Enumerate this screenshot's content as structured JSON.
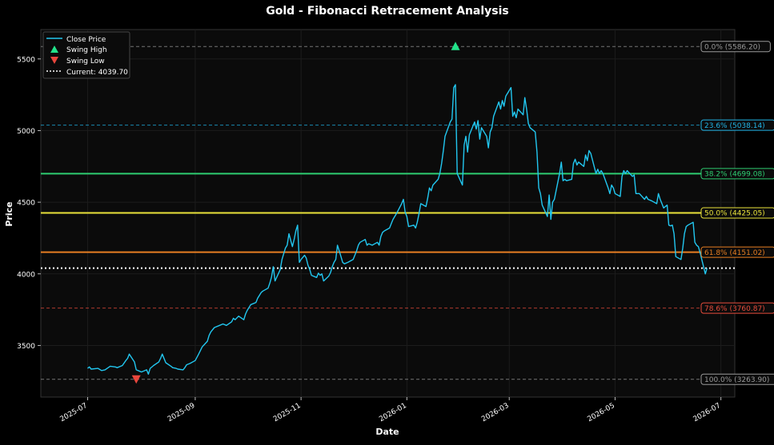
{
  "chart_data": {
    "type": "line",
    "title": "Gold - Fibonacci Retracement Analysis",
    "xlabel": "Date",
    "ylabel": "Price",
    "ylim": [
      3140,
      5705
    ],
    "xlim": [
      "2025-06-04",
      "2026-07-09"
    ],
    "y_ticks": [
      3500,
      4000,
      4500,
      5000,
      5500
    ],
    "x_ticks": [
      {
        "date": "2025-07-01",
        "label": "2025-07"
      },
      {
        "date": "2025-09-01",
        "label": "2025-09"
      },
      {
        "date": "2025-11-01",
        "label": "2025-11"
      },
      {
        "date": "2026-01-01",
        "label": "2026-01"
      },
      {
        "date": "2026-03-01",
        "label": "2026-03"
      },
      {
        "date": "2026-05-01",
        "label": "2026-05"
      },
      {
        "date": "2026-07-01",
        "label": "2026-07"
      }
    ],
    "grid": true,
    "legend_position": "top-left",
    "colors": {
      "background": "#000000",
      "plot_background": "#0b0b0b",
      "price_line": "#22c7f0",
      "swing_high": "#22e28a",
      "swing_low": "#e8463c",
      "current": "#ffffff"
    },
    "legend": [
      {
        "key": "close",
        "label": "Close Price"
      },
      {
        "key": "high",
        "label": "Swing High"
      },
      {
        "key": "low",
        "label": "Swing Low"
      },
      {
        "key": "current",
        "label": "Current: 4039.70"
      }
    ],
    "current_price": 4039.7,
    "swing_high": {
      "date": "2026-01-29",
      "value": 5586.2
    },
    "swing_low": {
      "date": "2025-07-29",
      "value": 3263.9
    },
    "fib_levels": [
      {
        "label": "0.0% (5586.20)",
        "value": 5586.2,
        "color": "#9a9a9a",
        "style": "dashed"
      },
      {
        "label": "23.6% (5038.14)",
        "value": 5038.14,
        "color": "#22b4e6",
        "style": "dashed"
      },
      {
        "label": "38.2% (4699.08)",
        "value": 4699.08,
        "color": "#2ecc71",
        "style": "solid"
      },
      {
        "label": "50.0% (4425.05)",
        "value": 4425.05,
        "color": "#e8e23a",
        "style": "solid"
      },
      {
        "label": "61.8% (4151.02)",
        "value": 4151.02,
        "color": "#e67e22",
        "style": "solid"
      },
      {
        "label": "78.6% (3760.87)",
        "value": 3760.87,
        "color": "#e74c3c",
        "style": "dashed"
      },
      {
        "label": "100.0% (3263.90)",
        "value": 3263.9,
        "color": "#9a9a9a",
        "style": "dashed"
      }
    ],
    "series": [
      {
        "key": "close",
        "points": [
          [
            "2025-07-01",
            3340
          ],
          [
            "2025-07-02",
            3350
          ],
          [
            "2025-07-03",
            3335
          ],
          [
            "2025-07-07",
            3340
          ],
          [
            "2025-07-09",
            3325
          ],
          [
            "2025-07-11",
            3330
          ],
          [
            "2025-07-14",
            3355
          ],
          [
            "2025-07-17",
            3350
          ],
          [
            "2025-07-18",
            3345
          ],
          [
            "2025-07-21",
            3360
          ],
          [
            "2025-07-23",
            3395
          ],
          [
            "2025-07-24",
            3410
          ],
          [
            "2025-07-25",
            3440
          ],
          [
            "2025-07-28",
            3385
          ],
          [
            "2025-07-29",
            3330
          ],
          [
            "2025-07-31",
            3320
          ],
          [
            "2025-08-01",
            3315
          ],
          [
            "2025-08-04",
            3330
          ],
          [
            "2025-08-05",
            3300
          ],
          [
            "2025-08-06",
            3340
          ],
          [
            "2025-08-08",
            3360
          ],
          [
            "2025-08-11",
            3385
          ],
          [
            "2025-08-12",
            3410
          ],
          [
            "2025-08-13",
            3440
          ],
          [
            "2025-08-15",
            3380
          ],
          [
            "2025-08-18",
            3355
          ],
          [
            "2025-08-19",
            3345
          ],
          [
            "2025-08-21",
            3340
          ],
          [
            "2025-08-22",
            3335
          ],
          [
            "2025-08-25",
            3330
          ],
          [
            "2025-08-26",
            3345
          ],
          [
            "2025-08-27",
            3365
          ],
          [
            "2025-08-29",
            3375
          ],
          [
            "2025-09-01",
            3395
          ],
          [
            "2025-09-03",
            3440
          ],
          [
            "2025-09-05",
            3490
          ],
          [
            "2025-09-08",
            3530
          ],
          [
            "2025-09-09",
            3570
          ],
          [
            "2025-09-10",
            3595
          ],
          [
            "2025-09-12",
            3625
          ],
          [
            "2025-09-15",
            3640
          ],
          [
            "2025-09-17",
            3650
          ],
          [
            "2025-09-19",
            3640
          ],
          [
            "2025-09-22",
            3665
          ],
          [
            "2025-09-23",
            3690
          ],
          [
            "2025-09-24",
            3680
          ],
          [
            "2025-09-26",
            3705
          ],
          [
            "2025-09-29",
            3680
          ],
          [
            "2025-09-30",
            3720
          ],
          [
            "2025-10-01",
            3745
          ],
          [
            "2025-10-03",
            3785
          ],
          [
            "2025-10-06",
            3800
          ],
          [
            "2025-10-07",
            3830
          ],
          [
            "2025-10-08",
            3850
          ],
          [
            "2025-10-09",
            3870
          ],
          [
            "2025-10-10",
            3880
          ],
          [
            "2025-10-13",
            3900
          ],
          [
            "2025-10-14",
            3935
          ],
          [
            "2025-10-15",
            3980
          ],
          [
            "2025-10-16",
            4050
          ],
          [
            "2025-10-17",
            3950
          ],
          [
            "2025-10-20",
            4030
          ],
          [
            "2025-10-21",
            4100
          ],
          [
            "2025-10-22",
            4140
          ],
          [
            "2025-10-23",
            4180
          ],
          [
            "2025-10-24",
            4200
          ],
          [
            "2025-10-25",
            4280
          ],
          [
            "2025-10-27",
            4190
          ],
          [
            "2025-10-28",
            4240
          ],
          [
            "2025-10-29",
            4300
          ],
          [
            "2025-10-30",
            4340
          ],
          [
            "2025-10-31",
            4080
          ],
          [
            "2025-11-01",
            4100
          ],
          [
            "2025-11-03",
            4130
          ],
          [
            "2025-11-04",
            4110
          ],
          [
            "2025-11-05",
            4060
          ],
          [
            "2025-11-06",
            4030
          ],
          [
            "2025-11-07",
            3990
          ],
          [
            "2025-11-10",
            3975
          ],
          [
            "2025-11-11",
            4005
          ],
          [
            "2025-11-12",
            3990
          ],
          [
            "2025-11-13",
            4000
          ],
          [
            "2025-11-14",
            3950
          ],
          [
            "2025-11-17",
            3985
          ],
          [
            "2025-11-18",
            4010
          ],
          [
            "2025-11-19",
            4050
          ],
          [
            "2025-11-20",
            4080
          ],
          [
            "2025-11-21",
            4100
          ],
          [
            "2025-11-22",
            4200
          ],
          [
            "2025-11-24",
            4120
          ],
          [
            "2025-11-25",
            4080
          ],
          [
            "2025-11-26",
            4070
          ],
          [
            "2025-11-28",
            4080
          ],
          [
            "2025-12-01",
            4100
          ],
          [
            "2025-12-03",
            4160
          ],
          [
            "2025-12-04",
            4200
          ],
          [
            "2025-12-05",
            4220
          ],
          [
            "2025-12-08",
            4240
          ],
          [
            "2025-12-09",
            4200
          ],
          [
            "2025-12-10",
            4210
          ],
          [
            "2025-12-12",
            4200
          ],
          [
            "2025-12-15",
            4220
          ],
          [
            "2025-12-16",
            4200
          ],
          [
            "2025-12-17",
            4260
          ],
          [
            "2025-12-18",
            4290
          ],
          [
            "2025-12-19",
            4300
          ],
          [
            "2025-12-22",
            4320
          ],
          [
            "2025-12-23",
            4350
          ],
          [
            "2025-12-24",
            4380
          ],
          [
            "2025-12-26",
            4420
          ],
          [
            "2025-12-29",
            4490
          ],
          [
            "2025-12-30",
            4520
          ],
          [
            "2025-12-31",
            4430
          ],
          [
            "2026-01-01",
            4400
          ],
          [
            "2026-01-02",
            4330
          ],
          [
            "2026-01-05",
            4340
          ],
          [
            "2026-01-06",
            4320
          ],
          [
            "2026-01-07",
            4360
          ],
          [
            "2026-01-08",
            4420
          ],
          [
            "2026-01-09",
            4490
          ],
          [
            "2026-01-12",
            4470
          ],
          [
            "2026-01-13",
            4530
          ],
          [
            "2026-01-14",
            4600
          ],
          [
            "2026-01-15",
            4580
          ],
          [
            "2026-01-16",
            4620
          ],
          [
            "2026-01-19",
            4660
          ],
          [
            "2026-01-20",
            4700
          ],
          [
            "2026-01-21",
            4770
          ],
          [
            "2026-01-22",
            4860
          ],
          [
            "2026-01-23",
            4960
          ],
          [
            "2026-01-26",
            5060
          ],
          [
            "2026-01-27",
            5080
          ],
          [
            "2026-01-28",
            5300
          ],
          [
            "2026-01-29",
            5320
          ],
          [
            "2026-01-30",
            4700
          ],
          [
            "2026-02-02",
            4620
          ],
          [
            "2026-02-03",
            4900
          ],
          [
            "2026-02-04",
            4960
          ],
          [
            "2026-02-05",
            4850
          ],
          [
            "2026-02-06",
            4970
          ],
          [
            "2026-02-09",
            5060
          ],
          [
            "2026-02-10",
            5010
          ],
          [
            "2026-02-11",
            5070
          ],
          [
            "2026-02-12",
            4940
          ],
          [
            "2026-02-13",
            5020
          ],
          [
            "2026-02-16",
            4960
          ],
          [
            "2026-02-17",
            4880
          ],
          [
            "2026-02-18",
            4990
          ],
          [
            "2026-02-19",
            5020
          ],
          [
            "2026-02-20",
            5100
          ],
          [
            "2026-02-23",
            5200
          ],
          [
            "2026-02-24",
            5150
          ],
          [
            "2026-02-25",
            5210
          ],
          [
            "2026-02-26",
            5170
          ],
          [
            "2026-02-27",
            5240
          ],
          [
            "2026-03-02",
            5300
          ],
          [
            "2026-03-03",
            5100
          ],
          [
            "2026-03-04",
            5130
          ],
          [
            "2026-03-05",
            5090
          ],
          [
            "2026-03-06",
            5150
          ],
          [
            "2026-03-09",
            5110
          ],
          [
            "2026-03-10",
            5230
          ],
          [
            "2026-03-11",
            5150
          ],
          [
            "2026-03-12",
            5050
          ],
          [
            "2026-03-13",
            5020
          ],
          [
            "2026-03-16",
            4990
          ],
          [
            "2026-03-17",
            4850
          ],
          [
            "2026-03-18",
            4600
          ],
          [
            "2026-03-19",
            4560
          ],
          [
            "2026-03-20",
            4480
          ],
          [
            "2026-03-23",
            4400
          ],
          [
            "2026-03-24",
            4550
          ],
          [
            "2026-03-25",
            4380
          ],
          [
            "2026-03-26",
            4500
          ],
          [
            "2026-03-27",
            4520
          ],
          [
            "2026-03-30",
            4700
          ],
          [
            "2026-03-31",
            4780
          ],
          [
            "2026-04-01",
            4650
          ],
          [
            "2026-04-02",
            4660
          ],
          [
            "2026-04-03",
            4650
          ],
          [
            "2026-04-06",
            4660
          ],
          [
            "2026-04-07",
            4770
          ],
          [
            "2026-04-08",
            4800
          ],
          [
            "2026-04-09",
            4760
          ],
          [
            "2026-04-10",
            4780
          ],
          [
            "2026-04-13",
            4750
          ],
          [
            "2026-04-14",
            4830
          ],
          [
            "2026-04-15",
            4790
          ],
          [
            "2026-04-16",
            4860
          ],
          [
            "2026-04-17",
            4840
          ],
          [
            "2026-04-20",
            4700
          ],
          [
            "2026-04-21",
            4730
          ],
          [
            "2026-04-22",
            4700
          ],
          [
            "2026-04-23",
            4720
          ],
          [
            "2026-04-24",
            4700
          ],
          [
            "2026-04-27",
            4600
          ],
          [
            "2026-04-28",
            4560
          ],
          [
            "2026-04-29",
            4620
          ],
          [
            "2026-04-30",
            4600
          ],
          [
            "2026-05-01",
            4560
          ],
          [
            "2026-05-04",
            4540
          ],
          [
            "2026-05-05",
            4680
          ],
          [
            "2026-05-06",
            4720
          ],
          [
            "2026-05-07",
            4700
          ],
          [
            "2026-05-08",
            4720
          ],
          [
            "2026-05-11",
            4680
          ],
          [
            "2026-05-12",
            4690
          ],
          [
            "2026-05-13",
            4560
          ],
          [
            "2026-05-15",
            4560
          ],
          [
            "2026-05-18",
            4520
          ],
          [
            "2026-05-19",
            4540
          ],
          [
            "2026-05-20",
            4520
          ],
          [
            "2026-05-22",
            4510
          ],
          [
            "2026-05-25",
            4490
          ],
          [
            "2026-05-26",
            4560
          ],
          [
            "2026-05-27",
            4520
          ],
          [
            "2026-05-28",
            4490
          ],
          [
            "2026-05-29",
            4460
          ],
          [
            "2026-05-31",
            4480
          ],
          [
            "2026-06-01",
            4340
          ],
          [
            "2026-06-02",
            4335
          ],
          [
            "2026-06-03",
            4340
          ],
          [
            "2026-06-04",
            4280
          ],
          [
            "2026-06-05",
            4120
          ],
          [
            "2026-06-08",
            4100
          ],
          [
            "2026-06-09",
            4180
          ],
          [
            "2026-06-10",
            4280
          ],
          [
            "2026-06-11",
            4330
          ],
          [
            "2026-06-12",
            4340
          ],
          [
            "2026-06-15",
            4360
          ],
          [
            "2026-06-16",
            4220
          ],
          [
            "2026-06-17",
            4200
          ],
          [
            "2026-06-18",
            4190
          ],
          [
            "2026-06-19",
            4150
          ],
          [
            "2026-06-22",
            4000
          ],
          [
            "2026-06-23",
            4039.7
          ]
        ]
      }
    ]
  }
}
